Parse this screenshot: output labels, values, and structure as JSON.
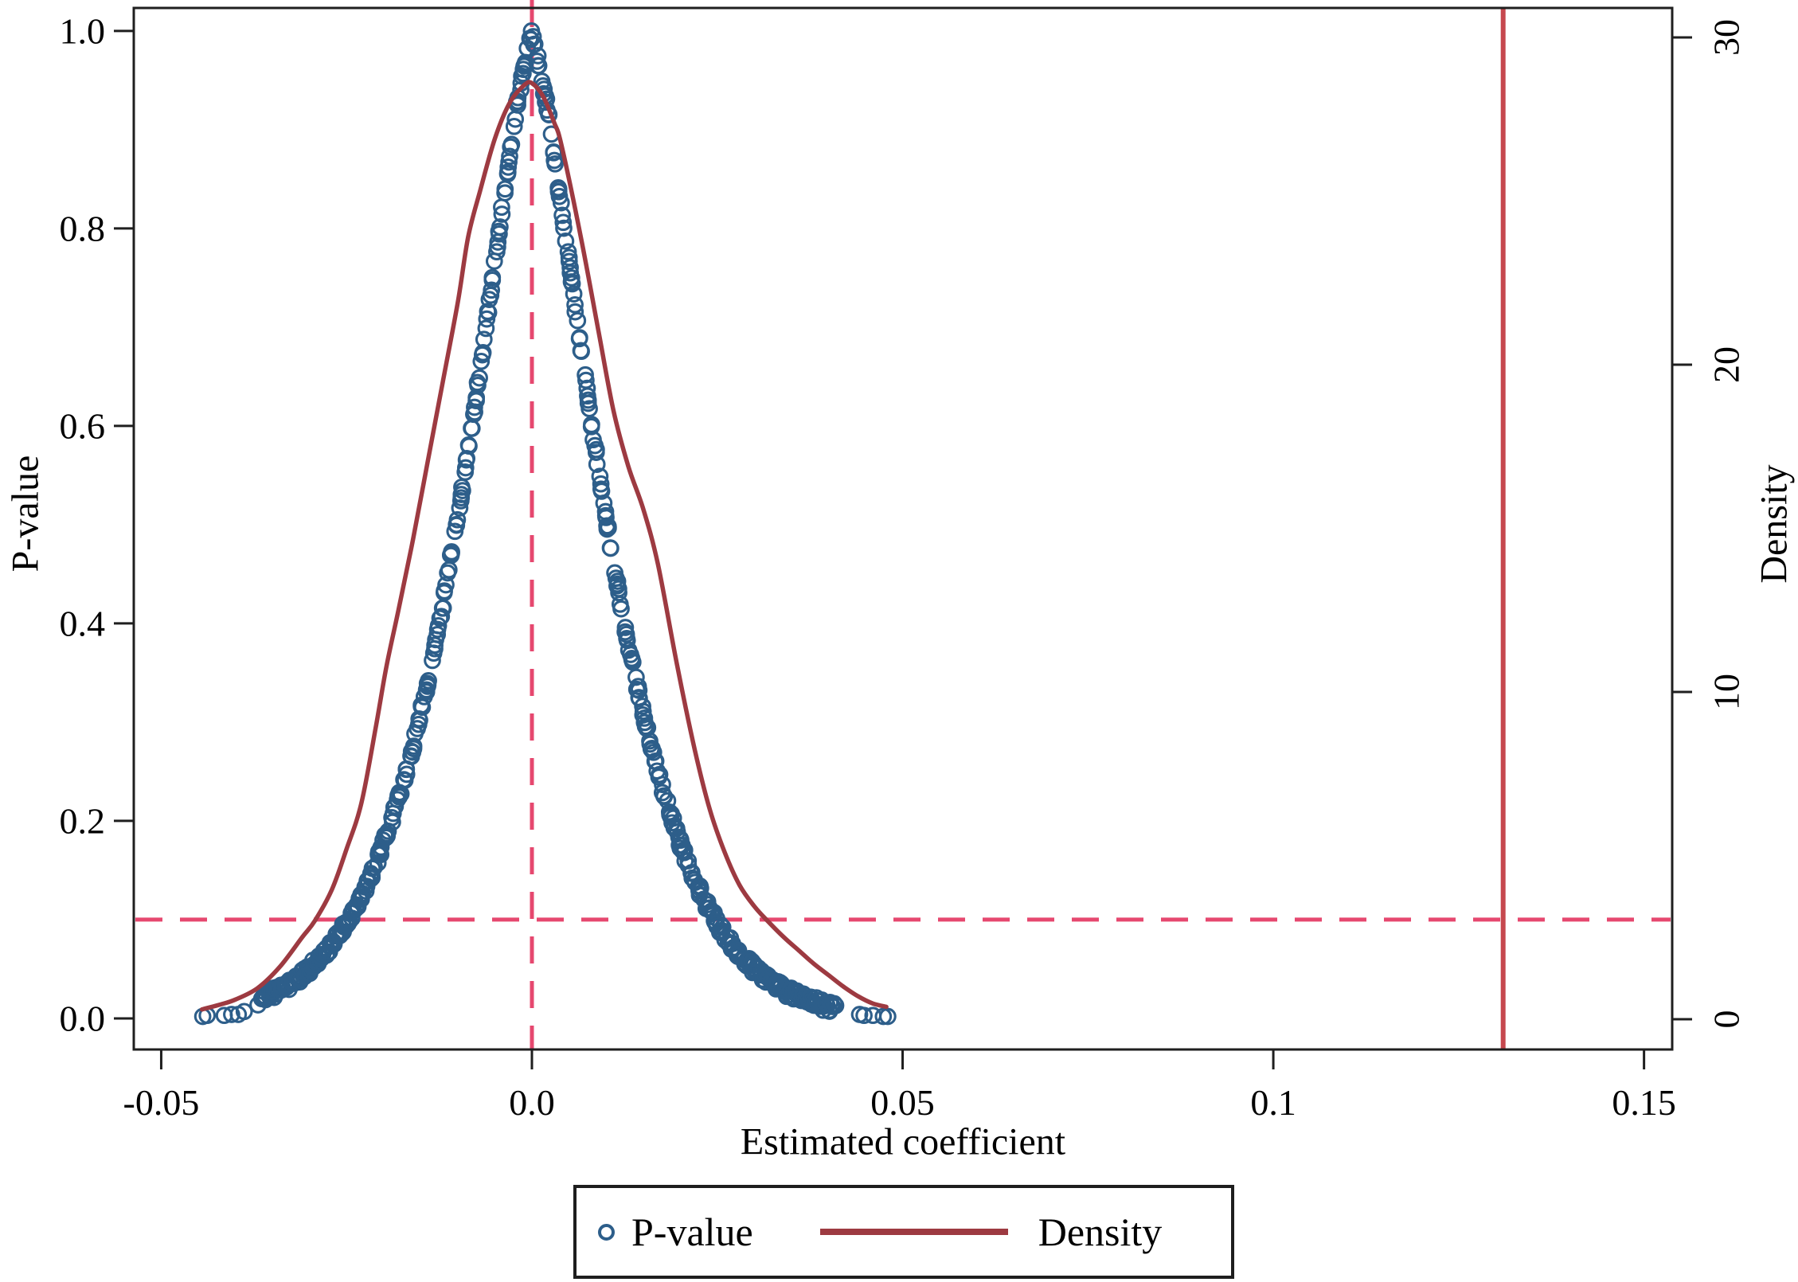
{
  "figure": {
    "background": "#ffffff",
    "frame_color": "#1f1f1f",
    "text_color": "#000000"
  },
  "axes": {
    "x": {
      "title": "Estimated coefficient",
      "ticks": [
        {
          "value": -0.05,
          "label": "-0.05"
        },
        {
          "value": 0.0,
          "label": "0.0"
        },
        {
          "value": 0.05,
          "label": "0.05"
        },
        {
          "value": 0.1,
          "label": "0.1"
        },
        {
          "value": 0.15,
          "label": "0.15"
        }
      ]
    },
    "y_left": {
      "title": "P-value",
      "ticks": [
        {
          "value": 0.0,
          "label": "0.0"
        },
        {
          "value": 0.2,
          "label": "0.2"
        },
        {
          "value": 0.4,
          "label": "0.4"
        },
        {
          "value": 0.6,
          "label": "0.6"
        },
        {
          "value": 0.8,
          "label": "0.8"
        },
        {
          "value": 1.0,
          "label": "1.0"
        }
      ]
    },
    "y_right": {
      "title": "Density",
      "ticks": [
        {
          "value": 0,
          "label": "0"
        },
        {
          "value": 10,
          "label": "10"
        },
        {
          "value": 20,
          "label": "20"
        },
        {
          "value": 30,
          "label": "30"
        }
      ]
    }
  },
  "legend": {
    "items": [
      {
        "label": "P-value",
        "marker": "hollow-circle",
        "color": "#2d5e8a"
      },
      {
        "label": "Density",
        "marker": "line",
        "color": "#9d3a41"
      }
    ]
  },
  "chart_data": {
    "type": "scatter",
    "title": "",
    "xlabel": "Estimated coefficient",
    "ylabel_left": "P-value",
    "ylabel_right": "Density",
    "xlim": [
      -0.0537,
      0.1538
    ],
    "ylim_left": [
      -0.0315,
      1.0233
    ],
    "ylim_right": [
      -0.925,
      30.9
    ],
    "grid": false,
    "legend_position": "bottom-center",
    "style": {
      "scatter_color": "#2d5e8a",
      "density_color": "#9d3a41",
      "dashed_ref_color": "#e6486f",
      "solid_ref_color": "#c6484e"
    },
    "reference_lines": {
      "vertical_dashed_x": 0.0,
      "horizontal_dashed_p_value": 0.1,
      "vertical_solid_x": 0.131
    },
    "series": [
      {
        "name": "P-value",
        "type": "scatter",
        "marker": "hollow-circle",
        "axis": "left",
        "p_curve": [
          [
            -0.0368,
            0.019
          ],
          [
            -0.034,
            0.029
          ],
          [
            -0.032,
            0.038
          ],
          [
            -0.03,
            0.05
          ],
          [
            -0.028,
            0.065
          ],
          [
            -0.026,
            0.084
          ],
          [
            -0.024,
            0.109
          ],
          [
            -0.022,
            0.139
          ],
          [
            -0.02,
            0.177
          ],
          [
            -0.018,
            0.222
          ],
          [
            -0.016,
            0.277
          ],
          [
            -0.014,
            0.342
          ],
          [
            -0.012,
            0.419
          ],
          [
            -0.01,
            0.507
          ],
          [
            -0.008,
            0.604
          ],
          [
            -0.006,
            0.711
          ],
          [
            -0.004,
            0.821
          ],
          [
            -0.002,
            0.926
          ],
          [
            0.0,
            1.0
          ],
          [
            0.002,
            0.926
          ],
          [
            0.004,
            0.821
          ],
          [
            0.006,
            0.711
          ],
          [
            0.008,
            0.604
          ],
          [
            0.01,
            0.507
          ],
          [
            0.012,
            0.419
          ],
          [
            0.014,
            0.342
          ],
          [
            0.016,
            0.277
          ],
          [
            0.018,
            0.222
          ],
          [
            0.02,
            0.177
          ],
          [
            0.022,
            0.139
          ],
          [
            0.024,
            0.109
          ],
          [
            0.026,
            0.084
          ],
          [
            0.028,
            0.065
          ],
          [
            0.03,
            0.05
          ],
          [
            0.032,
            0.038
          ],
          [
            0.034,
            0.029
          ],
          [
            0.036,
            0.022
          ],
          [
            0.038,
            0.016
          ],
          [
            0.0408,
            0.011
          ]
        ],
        "tail_points": [
          [
            -0.0444,
            0.002
          ],
          [
            -0.0438,
            0.003
          ],
          [
            -0.0415,
            0.003
          ],
          [
            -0.0405,
            0.004
          ],
          [
            -0.0396,
            0.004
          ],
          [
            -0.0388,
            0.007
          ],
          [
            0.0442,
            0.004
          ],
          [
            0.0448,
            0.003
          ],
          [
            0.046,
            0.003
          ],
          [
            0.0474,
            0.002
          ],
          [
            0.048,
            0.002
          ]
        ]
      },
      {
        "name": "Density",
        "type": "line",
        "axis": "right",
        "points": [
          [
            -0.0445,
            0.3
          ],
          [
            -0.042,
            0.45
          ],
          [
            -0.04,
            0.6
          ],
          [
            -0.037,
            0.95
          ],
          [
            -0.034,
            1.6
          ],
          [
            -0.031,
            2.5
          ],
          [
            -0.0293,
            3.0
          ],
          [
            -0.027,
            3.95
          ],
          [
            -0.025,
            5.2
          ],
          [
            -0.023,
            6.6
          ],
          [
            -0.021,
            9.0
          ],
          [
            -0.0196,
            10.8
          ],
          [
            -0.018,
            12.5
          ],
          [
            -0.016,
            14.7
          ],
          [
            -0.014,
            17.1
          ],
          [
            -0.012,
            19.5
          ],
          [
            -0.01,
            21.9
          ],
          [
            -0.0086,
            23.9
          ],
          [
            -0.007,
            25.3
          ],
          [
            -0.005,
            26.9
          ],
          [
            -0.003,
            28.0
          ],
          [
            -0.001,
            28.55
          ],
          [
            0.0,
            28.6
          ],
          [
            0.0015,
            28.2
          ],
          [
            0.003,
            27.4
          ],
          [
            0.004,
            26.7
          ],
          [
            0.0066,
            23.9
          ],
          [
            0.009,
            21.0
          ],
          [
            0.011,
            18.6
          ],
          [
            0.013,
            16.9
          ],
          [
            0.015,
            15.6
          ],
          [
            0.017,
            13.9
          ],
          [
            0.0196,
            10.8
          ],
          [
            0.022,
            8.2
          ],
          [
            0.024,
            6.4
          ],
          [
            0.026,
            5.1
          ],
          [
            0.028,
            4.1
          ],
          [
            0.03,
            3.45
          ],
          [
            0.0318,
            3.0
          ],
          [
            0.034,
            2.5
          ],
          [
            0.036,
            2.1
          ],
          [
            0.038,
            1.7
          ],
          [
            0.04,
            1.35
          ],
          [
            0.042,
            1.0
          ],
          [
            0.044,
            0.7
          ],
          [
            0.046,
            0.48
          ],
          [
            0.0478,
            0.38
          ]
        ],
        "peak": {
          "x": 0.0,
          "density": 28.6
        }
      }
    ]
  }
}
